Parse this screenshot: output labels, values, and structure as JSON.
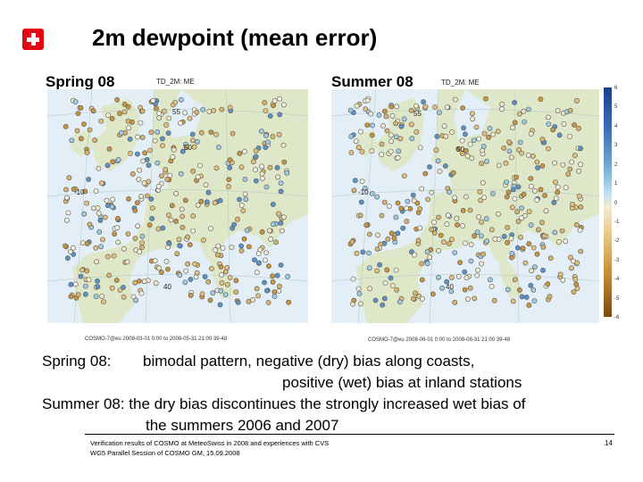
{
  "slide": {
    "title": "2m dewpoint (mean error)",
    "page_number": "14",
    "logo": "swiss-cross-logo"
  },
  "panels": {
    "spring": {
      "label": "Spring 08",
      "map_title": "TD_2M: ME",
      "caption": "COSMO-7@eu 2008-03-01 0:00 to 2008-05-31 21:00 39-48",
      "lat_labels": [
        "55",
        "50",
        "40"
      ],
      "lon_labels": [
        "-10"
      ]
    },
    "summer": {
      "label": "Summer 08",
      "map_title": "TD_2M: ME",
      "caption": "COSMO-7@eu 2008-06-01 0:00 to 2008-08-31 21:00 39-48",
      "lat_labels": [
        "55",
        "50",
        "40"
      ],
      "lon_labels": [
        "-10"
      ]
    }
  },
  "colorbar": {
    "ticks": [
      "6",
      "5",
      "4",
      "3",
      "2",
      "1",
      "0",
      "-1",
      "-2",
      "-3",
      "-4",
      "-5",
      "-6"
    ],
    "colors": {
      "wet": "#1c3f8c",
      "neutral": "#f1ecd6",
      "dry": "#7a4a10"
    }
  },
  "body": {
    "line1_label": "Spring 08:",
    "line1_text": "bimodal pattern, negative (dry) bias along coasts,",
    "line1_cont": "positive (wet) bias at inland stations",
    "line2_text": "Summer 08: the dry bias discontinues the strongly increased wet bias of",
    "line2_cont": "the summers 2006 and 2007"
  },
  "footer": {
    "line1": "Verification results of COSMO at MeteoSwiss in 2008 and experiences with CVS",
    "line2": "WG5 Parallel Session of COSMO GM, 15.09.2008"
  }
}
